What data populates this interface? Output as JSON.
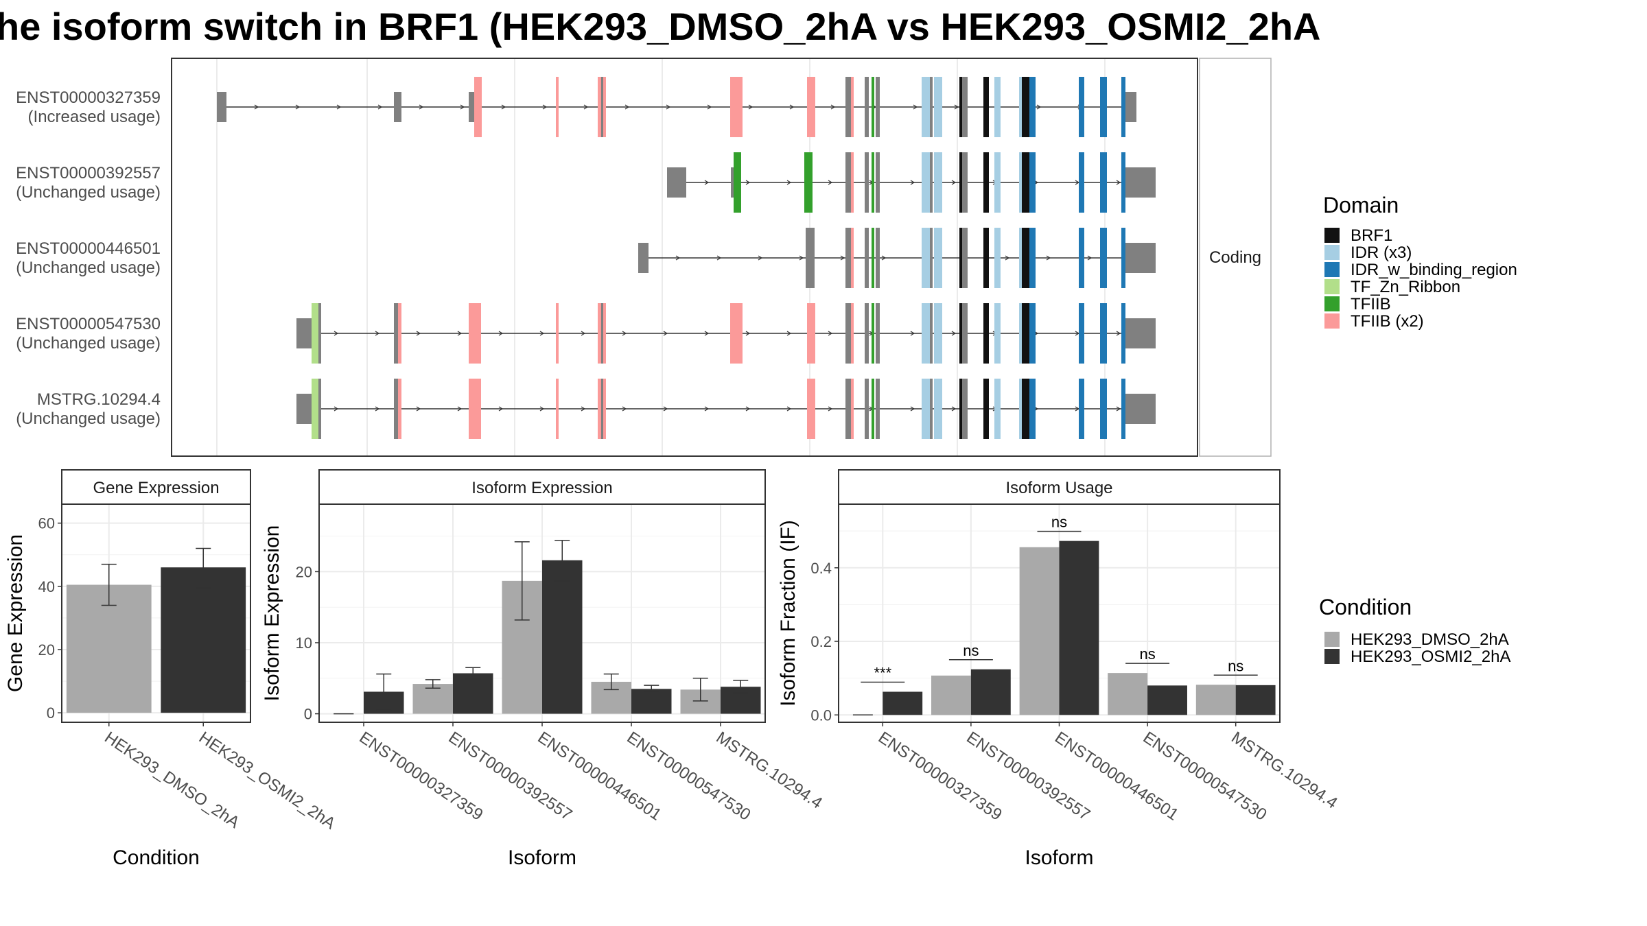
{
  "title": "he isoform switch in BRF1 (HEK293_DMSO_2hA vs HEK293_OSMI2_2hA",
  "colors": {
    "cond1": "#a9a9a9",
    "cond2": "#333333",
    "intron_exon": "#808080",
    "BRF1": "#111111",
    "IDR (x3)": "#a6cee3",
    "IDR_w_binding_region": "#1f78b4",
    "TF_Zn_Ribbon": "#b2df8a",
    "TFIIB": "#33a02c",
    "TFIIB (x2)": "#fb9a99"
  },
  "structure": {
    "strip_label": "Coding",
    "isoforms": [
      {
        "id": "ENST00000327359",
        "usage": "(Increased usage)"
      },
      {
        "id": "ENST00000392557",
        "usage": "(Unchanged usage)"
      },
      {
        "id": "ENST00000446501",
        "usage": "(Unchanged usage)"
      },
      {
        "id": "ENST00000547530",
        "usage": "(Unchanged usage)"
      },
      {
        "id": "MSTRG.10294.4",
        "usage": "(Unchanged usage)"
      }
    ]
  },
  "legend": {
    "domain_title": "Domain",
    "domains": [
      "BRF1",
      "IDR (x3)",
      "IDR_w_binding_region",
      "TF_Zn_Ribbon",
      "TFIIB",
      "TFIIB (x2)"
    ],
    "condition_title": "Condition",
    "conditions": [
      "HEK293_DMSO_2hA",
      "HEK293_OSMI2_2hA"
    ]
  },
  "chart_data": [
    {
      "type": "bar",
      "title": "Gene Expression",
      "xlabel": "Condition",
      "ylabel": "Gene Expression",
      "categories": [
        "HEK293_DMSO_2hA",
        "HEK293_OSMI2_2hA"
      ],
      "values": [
        40.5,
        46
      ],
      "error_low": [
        34,
        39.5
      ],
      "error_high": [
        47,
        52
      ],
      "ylim": [
        -3,
        66
      ],
      "yticks": [
        0,
        20,
        40,
        60
      ]
    },
    {
      "type": "bar",
      "title": "Isoform Expression",
      "xlabel": "Isoform",
      "ylabel": "Isoform Expression",
      "categories": [
        "ENST00000327359",
        "ENST00000392557",
        "ENST00000446501",
        "ENST00000547530",
        "MSTRG.10294.4"
      ],
      "series": [
        {
          "name": "HEK293_DMSO_2hA",
          "values": [
            0,
            4.2,
            18.7,
            4.5,
            3.4
          ],
          "error_low": [
            0,
            3.6,
            13.2,
            3.4,
            1.8
          ],
          "error_high": [
            0,
            4.8,
            24.2,
            5.6,
            5.0
          ]
        },
        {
          "name": "HEK293_OSMI2_2hA",
          "values": [
            3.1,
            5.7,
            21.6,
            3.5,
            3.8
          ],
          "error_low": [
            0.5,
            4.9,
            18.7,
            3.0,
            2.9
          ],
          "error_high": [
            5.6,
            6.5,
            24.4,
            4.0,
            4.7
          ]
        }
      ],
      "ylim": [
        -1.2,
        29.5
      ],
      "yticks": [
        0,
        10,
        20
      ]
    },
    {
      "type": "bar",
      "title": "Isoform Usage",
      "xlabel": "Isoform",
      "ylabel": "Isoform Fraction (IF)",
      "categories": [
        "ENST00000327359",
        "ENST00000392557",
        "ENST00000446501",
        "ENST00000547530",
        "MSTRG.10294.4"
      ],
      "series": [
        {
          "name": "HEK293_DMSO_2hA",
          "values": [
            0.0,
            0.107,
            0.456,
            0.114,
            0.082
          ]
        },
        {
          "name": "HEK293_OSMI2_2hA",
          "values": [
            0.063,
            0.124,
            0.473,
            0.08,
            0.081
          ]
        }
      ],
      "significance": [
        "***",
        "ns",
        "ns",
        "ns",
        "ns"
      ],
      "ylim": [
        -0.02,
        0.573
      ],
      "yticks": [
        0.0,
        0.2,
        0.4
      ],
      "ytick_labels": [
        "0.0",
        "0.2",
        "0.4"
      ]
    }
  ]
}
